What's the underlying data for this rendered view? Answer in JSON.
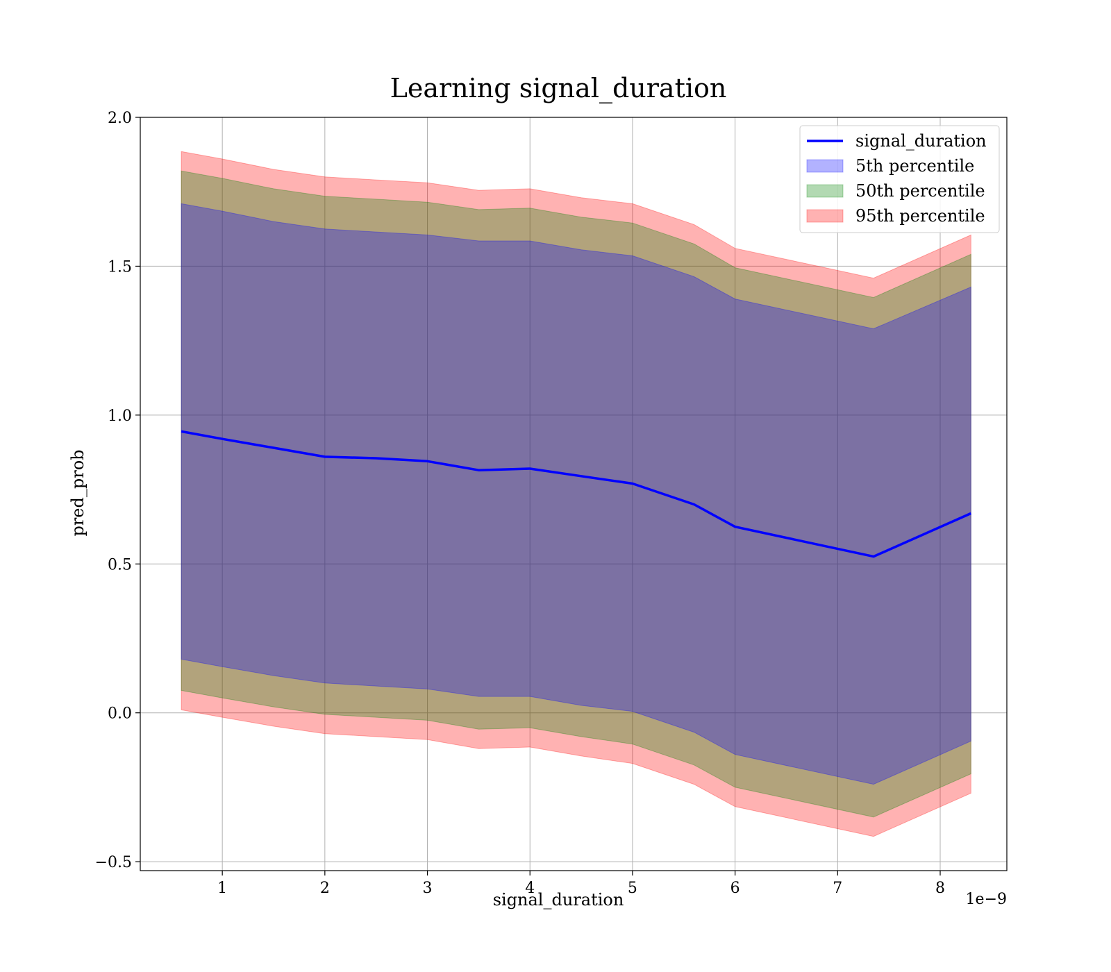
{
  "chart_data": {
    "type": "area",
    "title": "Learning signal_duration",
    "xlabel": "signal_duration",
    "ylabel": "pred_prob",
    "x_offset_label": "1e−9",
    "xlim": [
      0.2,
      8.65
    ],
    "ylim": [
      -0.53,
      2.0
    ],
    "x_ticks": [
      1,
      2,
      3,
      4,
      5,
      6,
      7,
      8
    ],
    "x_tick_labels": [
      "1",
      "2",
      "3",
      "4",
      "5",
      "6",
      "7",
      "8"
    ],
    "y_ticks": [
      -0.5,
      0.0,
      0.5,
      1.0,
      1.5,
      2.0
    ],
    "y_tick_labels": [
      "−0.5",
      "0.0",
      "0.5",
      "1.0",
      "1.5",
      "2.0"
    ],
    "grid": true,
    "legend_position": "top-right",
    "x": [
      0.6,
      1.0,
      1.5,
      2.0,
      2.5,
      3.0,
      3.5,
      4.0,
      4.5,
      5.0,
      5.6,
      6.0,
      7.35,
      8.3
    ],
    "series": [
      {
        "name": "signal_duration",
        "kind": "line",
        "color": "#0000ff",
        "values": [
          0.945,
          0.92,
          0.89,
          0.86,
          0.855,
          0.845,
          0.815,
          0.82,
          0.795,
          0.77,
          0.7,
          0.625,
          0.525,
          0.67
        ]
      },
      {
        "name": "5th percentile",
        "kind": "band",
        "color": "#0000ff",
        "lower": [
          0.18,
          0.155,
          0.125,
          0.1,
          0.09,
          0.08,
          0.055,
          0.055,
          0.025,
          0.005,
          -0.065,
          -0.14,
          -0.24,
          -0.095
        ],
        "upper": [
          1.71,
          1.685,
          1.65,
          1.625,
          1.615,
          1.605,
          1.585,
          1.585,
          1.555,
          1.535,
          1.465,
          1.39,
          1.29,
          1.43
        ]
      },
      {
        "name": "50th percentile",
        "kind": "band",
        "color": "#008000",
        "lower": [
          0.075,
          0.05,
          0.02,
          -0.005,
          -0.015,
          -0.025,
          -0.055,
          -0.05,
          -0.08,
          -0.105,
          -0.175,
          -0.25,
          -0.35,
          -0.205
        ],
        "upper": [
          1.82,
          1.795,
          1.76,
          1.735,
          1.725,
          1.715,
          1.69,
          1.695,
          1.665,
          1.645,
          1.575,
          1.495,
          1.395,
          1.54
        ]
      },
      {
        "name": "95th percentile",
        "kind": "band",
        "color": "#ff0000",
        "lower": [
          0.01,
          -0.015,
          -0.045,
          -0.07,
          -0.08,
          -0.09,
          -0.12,
          -0.115,
          -0.145,
          -0.17,
          -0.24,
          -0.315,
          -0.415,
          -0.27
        ],
        "upper": [
          1.885,
          1.86,
          1.825,
          1.8,
          1.79,
          1.78,
          1.755,
          1.76,
          1.73,
          1.71,
          1.64,
          1.56,
          1.46,
          1.605
        ]
      }
    ]
  }
}
